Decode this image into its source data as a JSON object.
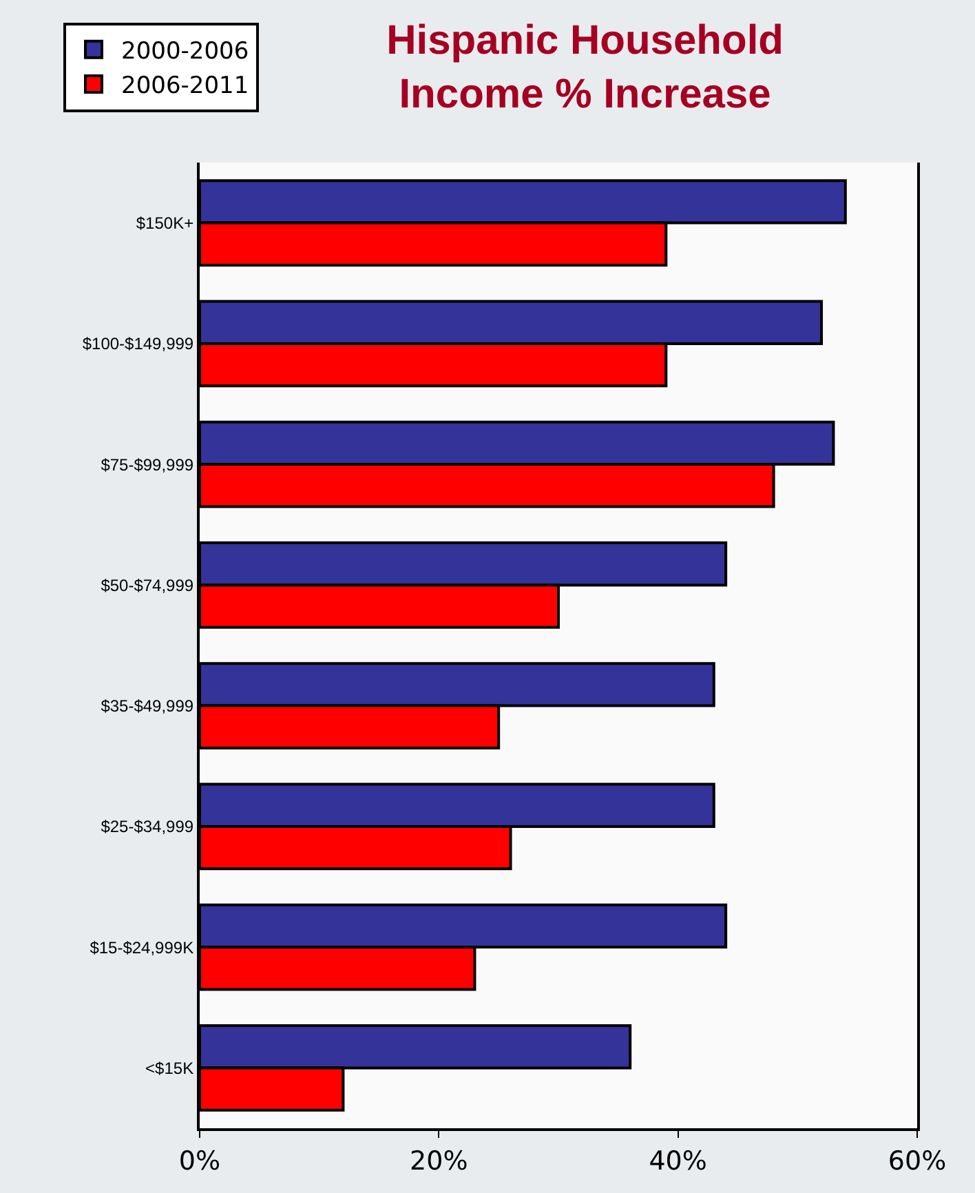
{
  "chart_data": {
    "type": "bar",
    "orientation": "horizontal",
    "title": "Hispanic Household\nIncome % Increase",
    "categories": [
      "$150K+",
      "$100-$149,999",
      "$75-$99,999",
      "$50-$74,999",
      "$35-$49,999",
      "$25-$34,999",
      "$15-$24,999K",
      "<$15K"
    ],
    "series": [
      {
        "name": "2000-2006",
        "color": "#333399",
        "values": [
          54,
          52,
          53,
          44,
          43,
          43,
          44,
          36
        ]
      },
      {
        "name": "2006-2011",
        "color": "#ff0000",
        "values": [
          39,
          39,
          48,
          30,
          25,
          26,
          23,
          12
        ]
      }
    ],
    "xlim": [
      0,
      60
    ],
    "xticks": [
      {
        "value": 0,
        "label": "0%"
      },
      {
        "value": 20,
        "label": "20%"
      },
      {
        "value": 40,
        "label": "40%"
      },
      {
        "value": 60,
        "label": "60%"
      }
    ],
    "legend": "top left"
  }
}
